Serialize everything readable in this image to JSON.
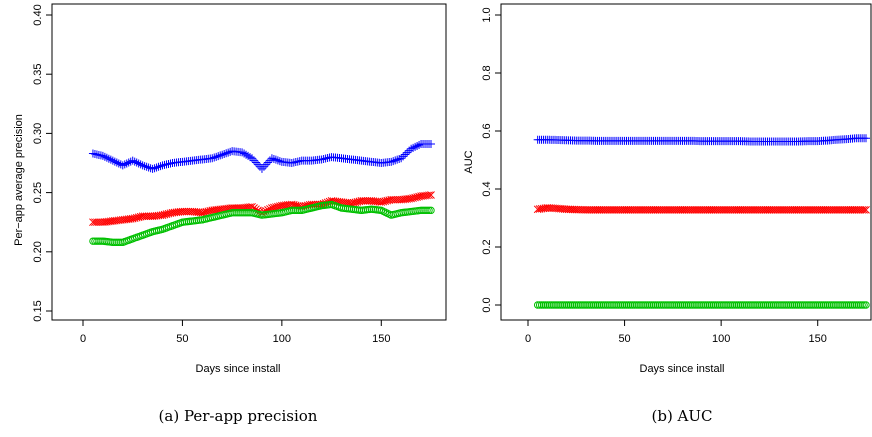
{
  "chart_data": [
    {
      "type": "scatter",
      "caption": "(a) Per-app precision",
      "xlabel": "Days since install",
      "ylabel": "Per−app average precision",
      "xlim": [
        4,
        175
      ],
      "ylim": [
        0.15,
        0.4
      ],
      "xticks": [
        "0",
        "50",
        "100",
        "150"
      ],
      "yticks": [
        "0.15",
        "0.20",
        "0.25",
        "0.30",
        "0.35",
        "0.40"
      ],
      "grid": false,
      "x": [
        5,
        10,
        15,
        20,
        25,
        30,
        35,
        40,
        45,
        50,
        55,
        60,
        65,
        70,
        75,
        80,
        85,
        90,
        95,
        100,
        105,
        110,
        115,
        120,
        125,
        130,
        135,
        140,
        145,
        150,
        155,
        160,
        165,
        170,
        175
      ],
      "series": [
        {
          "color": "#0000ff",
          "marker": "plus",
          "values": [
            0.283,
            0.281,
            0.277,
            0.273,
            0.277,
            0.273,
            0.27,
            0.273,
            0.275,
            0.276,
            0.277,
            0.278,
            0.279,
            0.282,
            0.285,
            0.284,
            0.279,
            0.27,
            0.279,
            0.276,
            0.275,
            0.277,
            0.277,
            0.278,
            0.28,
            0.279,
            0.278,
            0.277,
            0.276,
            0.275,
            0.276,
            0.279,
            0.287,
            0.291,
            0.291
          ]
        },
        {
          "color": "#ff0000",
          "marker": "cross",
          "values": [
            0.225,
            0.225,
            0.226,
            0.227,
            0.228,
            0.23,
            0.23,
            0.231,
            0.233,
            0.234,
            0.234,
            0.233,
            0.235,
            0.236,
            0.237,
            0.237,
            0.238,
            0.233,
            0.237,
            0.239,
            0.24,
            0.238,
            0.24,
            0.24,
            0.243,
            0.242,
            0.241,
            0.243,
            0.243,
            0.242,
            0.244,
            0.244,
            0.245,
            0.247,
            0.248
          ]
        },
        {
          "color": "#00c000",
          "marker": "circle",
          "values": [
            0.209,
            0.209,
            0.208,
            0.208,
            0.211,
            0.214,
            0.217,
            0.219,
            0.222,
            0.225,
            0.226,
            0.227,
            0.229,
            0.231,
            0.233,
            0.233,
            0.233,
            0.231,
            0.232,
            0.233,
            0.235,
            0.235,
            0.237,
            0.239,
            0.24,
            0.237,
            0.236,
            0.235,
            0.236,
            0.235,
            0.231,
            0.233,
            0.234,
            0.235,
            0.235
          ]
        }
      ]
    },
    {
      "type": "scatter",
      "caption": "(b) AUC",
      "xlabel": "Days since install",
      "ylabel": "AUC",
      "xlim": [
        4,
        175
      ],
      "ylim": [
        0.0,
        1.0
      ],
      "xticks": [
        "0",
        "50",
        "100",
        "150"
      ],
      "yticks": [
        "0.0",
        "0.2",
        "0.4",
        "0.6",
        "0.8",
        "1.0"
      ],
      "grid": false,
      "x": [
        5,
        10,
        15,
        20,
        25,
        30,
        35,
        40,
        45,
        50,
        55,
        60,
        65,
        70,
        75,
        80,
        85,
        90,
        95,
        100,
        105,
        110,
        115,
        120,
        125,
        130,
        135,
        140,
        145,
        150,
        155,
        160,
        165,
        170,
        175
      ],
      "series": [
        {
          "color": "#0000ff",
          "marker": "plus",
          "values": [
            0.57,
            0.57,
            0.569,
            0.568,
            0.567,
            0.567,
            0.566,
            0.566,
            0.566,
            0.566,
            0.566,
            0.566,
            0.566,
            0.566,
            0.566,
            0.566,
            0.566,
            0.565,
            0.565,
            0.565,
            0.565,
            0.565,
            0.564,
            0.564,
            0.564,
            0.564,
            0.564,
            0.564,
            0.565,
            0.565,
            0.567,
            0.57,
            0.572,
            0.575,
            0.575
          ]
        },
        {
          "color": "#ff0000",
          "marker": "cross",
          "values": [
            0.33,
            0.335,
            0.333,
            0.33,
            0.329,
            0.328,
            0.328,
            0.328,
            0.328,
            0.328,
            0.328,
            0.328,
            0.328,
            0.328,
            0.328,
            0.328,
            0.328,
            0.328,
            0.328,
            0.328,
            0.328,
            0.328,
            0.328,
            0.328,
            0.328,
            0.328,
            0.328,
            0.328,
            0.328,
            0.328,
            0.328,
            0.328,
            0.328,
            0.328,
            0.328
          ]
        },
        {
          "color": "#00c000",
          "marker": "circle",
          "values": [
            0.0,
            0.0,
            0.0,
            0.0,
            0.0,
            0.0,
            0.0,
            0.0,
            0.0,
            0.0,
            0.0,
            0.0,
            0.0,
            0.0,
            0.0,
            0.0,
            0.0,
            0.0,
            0.0,
            0.0,
            0.0,
            0.0,
            0.0,
            0.0,
            0.0,
            0.0,
            0.0,
            0.0,
            0.0,
            0.0,
            0.0,
            0.0,
            0.0,
            0.0,
            0.0
          ]
        }
      ]
    }
  ]
}
